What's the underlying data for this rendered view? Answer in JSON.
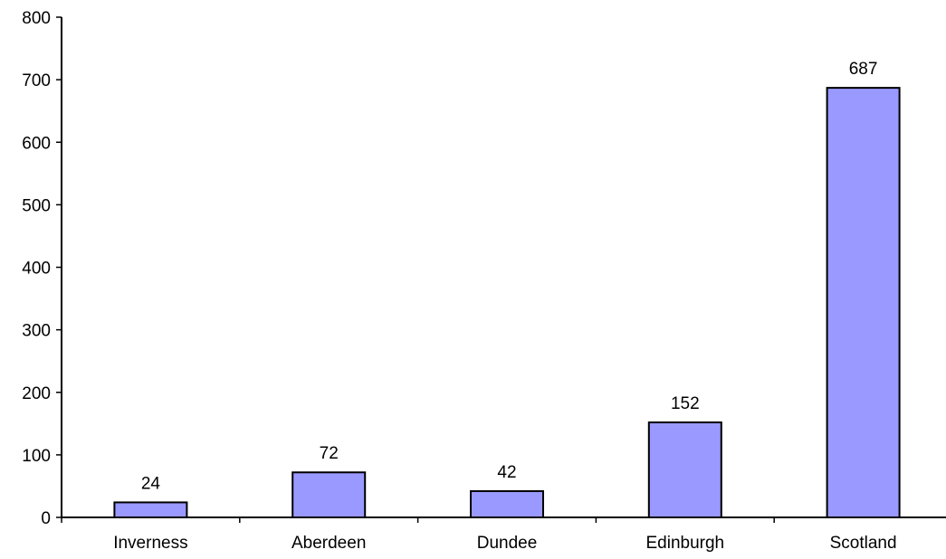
{
  "chart_data": {
    "type": "bar",
    "title": "",
    "xlabel": "",
    "ylabel": "",
    "categories": [
      "Inverness",
      "Aberdeen",
      "Dundee",
      "Edinburgh",
      "Scotland"
    ],
    "values": [
      24,
      72,
      42,
      152,
      687
    ],
    "data_labels": [
      "24",
      "72",
      "42",
      "152",
      "687"
    ],
    "ylim": [
      0,
      800
    ],
    "yticks": [
      0,
      100,
      200,
      300,
      400,
      500,
      600,
      700,
      800
    ],
    "ytick_labels": [
      "0",
      "100",
      "200",
      "300",
      "400",
      "500",
      "600",
      "700",
      "800"
    ],
    "grid": false,
    "legend": "none",
    "bar_color": "#9999FF",
    "bar_edge_color": "#000000",
    "axis_color": "#000000"
  }
}
